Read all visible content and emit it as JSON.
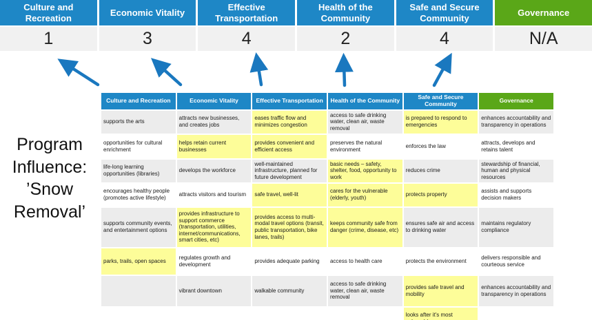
{
  "program_label": "Program Influence: ’Snow Removal’",
  "colors": {
    "header_blue": "#1e87c6",
    "header_green": "#5aa718",
    "score_bg": "#f1f1f1",
    "highlight_yellow": "#fdfd99",
    "stripe_gray": "#ececec",
    "row_white": "#ffffff",
    "arrow_blue": "#1a78bf"
  },
  "banner": {
    "columns": [
      {
        "label": "Culture and Recreation",
        "score": "1"
      },
      {
        "label": "Economic Vitality",
        "score": "3"
      },
      {
        "label": "Effective Transportation",
        "score": "4"
      },
      {
        "label": "Health of the Community",
        "score": "2"
      },
      {
        "label": "Safe and Secure Community",
        "score": "4"
      },
      {
        "label": "Governance",
        "score": "N/A"
      }
    ]
  },
  "matrix": {
    "headers": [
      "Culture and Recreation",
      "Economic Vitality",
      "Effective Transportation",
      "Health of the Community",
      "Safe and Secure Community",
      "Governance"
    ],
    "rows": [
      [
        {
          "text": "supports the arts",
          "hl": false
        },
        {
          "text": "attracts new businesses, and creates jobs",
          "hl": false
        },
        {
          "text": "eases traffic flow and minimizes congestion",
          "hl": true
        },
        {
          "text": "access to safe drinking water, clean air, waste removal",
          "hl": false
        },
        {
          "text": "is prepared to respond to emergencies",
          "hl": true
        },
        {
          "text": "enhances accountability and transparency in operations",
          "hl": false
        }
      ],
      [
        {
          "text": "opportunities for cultural enrichment",
          "hl": false
        },
        {
          "text": "helps retain current businesses",
          "hl": true
        },
        {
          "text": "provides convenient and efficient access",
          "hl": true
        },
        {
          "text": "preserves the natural environment",
          "hl": false
        },
        {
          "text": "enforces the law",
          "hl": false
        },
        {
          "text": "attracts, develops and retains talent",
          "hl": false
        }
      ],
      [
        {
          "text": "life-long learning opportunities (libraries)",
          "hl": false
        },
        {
          "text": "develops the workforce",
          "hl": false
        },
        {
          "text": "well-maintained infrastructure, planned for future development",
          "hl": false
        },
        {
          "text": "basic needs – safety, shelter, food, opportunity to work",
          "hl": true
        },
        {
          "text": "reduces crime",
          "hl": false
        },
        {
          "text": "stewardship of financial, human and physical resources",
          "hl": false
        }
      ],
      [
        {
          "text": "encourages healthy people (promotes active lifestyle)",
          "hl": false
        },
        {
          "text": "attracts visitors and tourism",
          "hl": false
        },
        {
          "text": "safe travel, well-lit",
          "hl": true
        },
        {
          "text": "cares for the vulnerable (elderly, youth)",
          "hl": true
        },
        {
          "text": "protects property",
          "hl": true
        },
        {
          "text": "assists and supports decision makers",
          "hl": false
        }
      ],
      [
        {
          "text": "supports community events, and entertainment options",
          "hl": false
        },
        {
          "text": "provides infrastructure to support commerce (transportation, utilities, internet/communications, smart cities, etc)",
          "hl": true
        },
        {
          "text": "provides access to multi-modal travel options (transit, public transportation, bike lanes, trails)",
          "hl": true
        },
        {
          "text": "keeps community safe from danger (crime, disease, etc)",
          "hl": true
        },
        {
          "text": "ensures safe air and access to drinking water",
          "hl": false
        },
        {
          "text": "maintains regulatory compliance",
          "hl": false
        }
      ],
      [
        {
          "text": "parks, trails, open spaces",
          "hl": true
        },
        {
          "text": "regulates growth and development",
          "hl": false
        },
        {
          "text": "provides adequate parking",
          "hl": false
        },
        {
          "text": "access to health care",
          "hl": false
        },
        {
          "text": "protects the environment",
          "hl": false
        },
        {
          "text": "delivers responsible and courteous service",
          "hl": false
        }
      ],
      [
        {
          "text": "",
          "hl": false
        },
        {
          "text": "vibrant downtown",
          "hl": false
        },
        {
          "text": "walkable community",
          "hl": false
        },
        {
          "text": "access to safe drinking water, clean air, waste removal",
          "hl": false
        },
        {
          "text": "provides safe travel and mobility",
          "hl": true
        },
        {
          "text": "enhances accountability and transparency in operations",
          "hl": false
        }
      ],
      [
        {
          "text": "",
          "hl": false
        },
        {
          "text": "",
          "hl": false
        },
        {
          "text": "",
          "hl": false
        },
        {
          "text": "",
          "hl": false
        },
        {
          "text": "looks after it's most vulnerable",
          "hl": true
        },
        {
          "text": "",
          "hl": false
        }
      ]
    ]
  }
}
